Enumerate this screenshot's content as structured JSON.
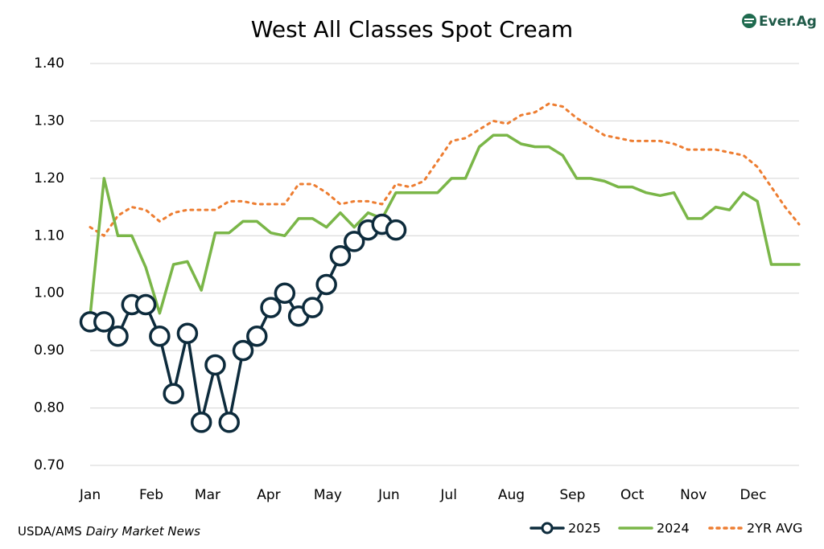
{
  "chart_data": {
    "type": "line",
    "title": "West All Classes Spot Cream",
    "logo": "Ever.Ag",
    "source": {
      "agency": "USDA/AMS",
      "publication": "Dairy Market News"
    },
    "x": [
      0,
      1,
      2,
      3,
      4,
      5,
      6,
      7,
      8,
      9,
      10,
      11,
      12,
      13,
      14,
      15,
      16,
      17,
      18,
      19,
      20,
      21,
      22,
      23,
      24,
      25,
      26,
      27,
      28,
      29,
      30,
      31,
      32,
      33,
      34,
      35,
      36,
      37,
      38,
      39,
      40,
      41,
      42,
      43,
      44,
      45,
      46,
      47,
      48,
      49,
      50,
      51
    ],
    "xlim": [
      0,
      51
    ],
    "xticks": [
      {
        "value": 0,
        "label": "Jan"
      },
      {
        "value": 4.4,
        "label": "Feb"
      },
      {
        "value": 8.45,
        "label": "Mar"
      },
      {
        "value": 12.85,
        "label": "Apr"
      },
      {
        "value": 17.1,
        "label": "May"
      },
      {
        "value": 21.5,
        "label": "Jun"
      },
      {
        "value": 25.8,
        "label": "Jul"
      },
      {
        "value": 30.3,
        "label": "Aug"
      },
      {
        "value": 34.7,
        "label": "Sep"
      },
      {
        "value": 39.0,
        "label": "Oct"
      },
      {
        "value": 43.4,
        "label": "Nov"
      },
      {
        "value": 47.7,
        "label": "Dec"
      }
    ],
    "ylim": [
      0.7,
      1.4
    ],
    "yticks": [
      {
        "value": 0.7,
        "label": "0.70"
      },
      {
        "value": 0.8,
        "label": "0.80"
      },
      {
        "value": 0.9,
        "label": "0.90"
      },
      {
        "value": 1.0,
        "label": "1.00"
      },
      {
        "value": 1.1,
        "label": "1.10"
      },
      {
        "value": 1.2,
        "label": "1.20"
      },
      {
        "value": 1.3,
        "label": "1.30"
      },
      {
        "value": 1.4,
        "label": "1.40"
      }
    ],
    "grid": true,
    "legend": "bottom-right",
    "series": [
      {
        "name": "2025",
        "color": "#0d2b3c",
        "marker": "circle",
        "dash": "solid",
        "values": [
          0.95,
          0.95,
          0.925,
          0.98,
          0.98,
          0.925,
          0.825,
          0.93,
          0.775,
          0.875,
          0.775,
          0.9,
          0.925,
          0.975,
          1.0,
          0.96,
          0.975,
          1.015,
          1.065,
          1.09,
          1.11,
          1.12,
          1.11,
          null,
          null,
          null,
          null,
          null,
          null,
          null,
          null,
          null,
          null,
          null,
          null,
          null,
          null,
          null,
          null,
          null,
          null,
          null,
          null,
          null,
          null,
          null,
          null,
          null,
          null,
          null,
          null,
          null
        ]
      },
      {
        "name": "2024",
        "color": "#7ab648",
        "marker": "none",
        "dash": "solid",
        "values": [
          0.96,
          1.2,
          1.1,
          1.1,
          1.045,
          0.965,
          1.05,
          1.055,
          1.005,
          1.105,
          1.105,
          1.125,
          1.125,
          1.105,
          1.1,
          1.13,
          1.13,
          1.115,
          1.14,
          1.115,
          1.14,
          1.13,
          1.175,
          1.175,
          1.175,
          1.175,
          1.2,
          1.2,
          1.255,
          1.275,
          1.275,
          1.26,
          1.255,
          1.255,
          1.24,
          1.2,
          1.2,
          1.195,
          1.185,
          1.185,
          1.175,
          1.17,
          1.175,
          1.13,
          1.13,
          1.15,
          1.145,
          1.175,
          1.16,
          1.05,
          1.05,
          1.05
        ]
      },
      {
        "name": "2YR AVG",
        "color": "#ed7d31",
        "marker": "none",
        "dash": "dotted",
        "values": [
          1.115,
          1.1,
          1.135,
          1.15,
          1.145,
          1.125,
          1.14,
          1.145,
          1.145,
          1.145,
          1.16,
          1.16,
          1.155,
          1.155,
          1.155,
          1.19,
          1.19,
          1.175,
          1.155,
          1.16,
          1.16,
          1.155,
          1.19,
          1.185,
          1.195,
          1.23,
          1.265,
          1.27,
          1.285,
          1.3,
          1.295,
          1.31,
          1.315,
          1.33,
          1.325,
          1.305,
          1.29,
          1.275,
          1.27,
          1.265,
          1.265,
          1.265,
          1.26,
          1.25,
          1.25,
          1.25,
          1.245,
          1.24,
          1.22,
          1.185,
          1.15,
          1.12
        ]
      }
    ]
  }
}
